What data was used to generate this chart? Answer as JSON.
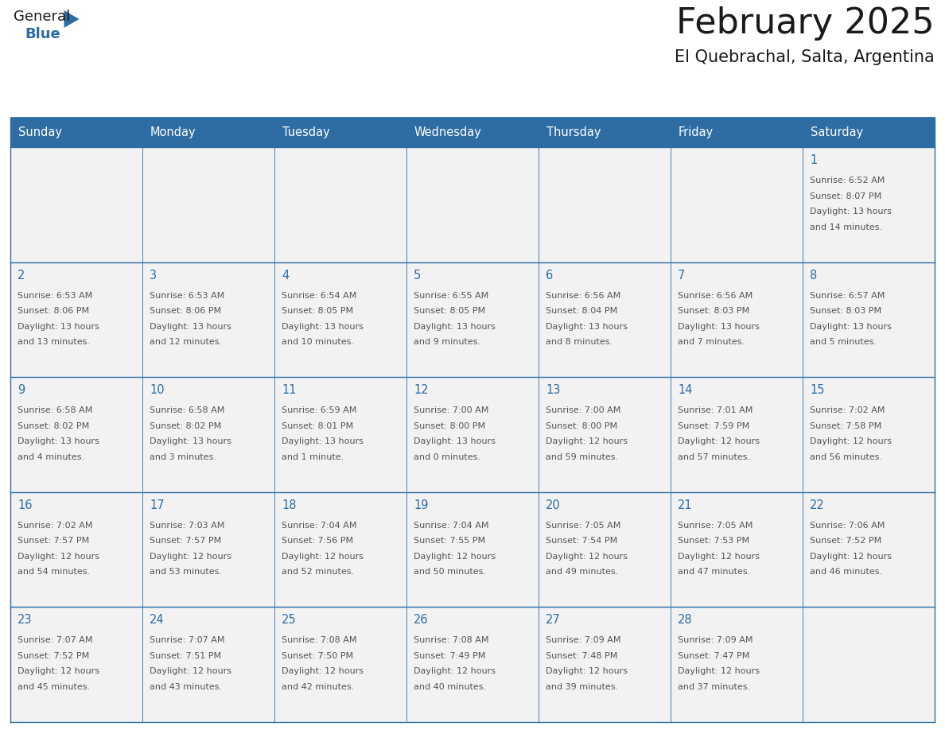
{
  "title": "February 2025",
  "subtitle": "El Quebrachal, Salta, Argentina",
  "header_bg": "#2E6DA4",
  "header_text": "#FFFFFF",
  "cell_bg": "#F2F2F2",
  "day_number_color": "#2E6DA4",
  "info_text_color": "#555555",
  "days_of_week": [
    "Sunday",
    "Monday",
    "Tuesday",
    "Wednesday",
    "Thursday",
    "Friday",
    "Saturday"
  ],
  "calendar_data": [
    [
      null,
      null,
      null,
      null,
      null,
      null,
      {
        "day": "1",
        "sunrise": "6:52 AM",
        "sunset": "8:07 PM",
        "daylight1": "13 hours",
        "daylight2": "and 14 minutes."
      }
    ],
    [
      {
        "day": "2",
        "sunrise": "6:53 AM",
        "sunset": "8:06 PM",
        "daylight1": "13 hours",
        "daylight2": "and 13 minutes."
      },
      {
        "day": "3",
        "sunrise": "6:53 AM",
        "sunset": "8:06 PM",
        "daylight1": "13 hours",
        "daylight2": "and 12 minutes."
      },
      {
        "day": "4",
        "sunrise": "6:54 AM",
        "sunset": "8:05 PM",
        "daylight1": "13 hours",
        "daylight2": "and 10 minutes."
      },
      {
        "day": "5",
        "sunrise": "6:55 AM",
        "sunset": "8:05 PM",
        "daylight1": "13 hours",
        "daylight2": "and 9 minutes."
      },
      {
        "day": "6",
        "sunrise": "6:56 AM",
        "sunset": "8:04 PM",
        "daylight1": "13 hours",
        "daylight2": "and 8 minutes."
      },
      {
        "day": "7",
        "sunrise": "6:56 AM",
        "sunset": "8:03 PM",
        "daylight1": "13 hours",
        "daylight2": "and 7 minutes."
      },
      {
        "day": "8",
        "sunrise": "6:57 AM",
        "sunset": "8:03 PM",
        "daylight1": "13 hours",
        "daylight2": "and 5 minutes."
      }
    ],
    [
      {
        "day": "9",
        "sunrise": "6:58 AM",
        "sunset": "8:02 PM",
        "daylight1": "13 hours",
        "daylight2": "and 4 minutes."
      },
      {
        "day": "10",
        "sunrise": "6:58 AM",
        "sunset": "8:02 PM",
        "daylight1": "13 hours",
        "daylight2": "and 3 minutes."
      },
      {
        "day": "11",
        "sunrise": "6:59 AM",
        "sunset": "8:01 PM",
        "daylight1": "13 hours",
        "daylight2": "and 1 minute."
      },
      {
        "day": "12",
        "sunrise": "7:00 AM",
        "sunset": "8:00 PM",
        "daylight1": "13 hours",
        "daylight2": "and 0 minutes."
      },
      {
        "day": "13",
        "sunrise": "7:00 AM",
        "sunset": "8:00 PM",
        "daylight1": "12 hours",
        "daylight2": "and 59 minutes."
      },
      {
        "day": "14",
        "sunrise": "7:01 AM",
        "sunset": "7:59 PM",
        "daylight1": "12 hours",
        "daylight2": "and 57 minutes."
      },
      {
        "day": "15",
        "sunrise": "7:02 AM",
        "sunset": "7:58 PM",
        "daylight1": "12 hours",
        "daylight2": "and 56 minutes."
      }
    ],
    [
      {
        "day": "16",
        "sunrise": "7:02 AM",
        "sunset": "7:57 PM",
        "daylight1": "12 hours",
        "daylight2": "and 54 minutes."
      },
      {
        "day": "17",
        "sunrise": "7:03 AM",
        "sunset": "7:57 PM",
        "daylight1": "12 hours",
        "daylight2": "and 53 minutes."
      },
      {
        "day": "18",
        "sunrise": "7:04 AM",
        "sunset": "7:56 PM",
        "daylight1": "12 hours",
        "daylight2": "and 52 minutes."
      },
      {
        "day": "19",
        "sunrise": "7:04 AM",
        "sunset": "7:55 PM",
        "daylight1": "12 hours",
        "daylight2": "and 50 minutes."
      },
      {
        "day": "20",
        "sunrise": "7:05 AM",
        "sunset": "7:54 PM",
        "daylight1": "12 hours",
        "daylight2": "and 49 minutes."
      },
      {
        "day": "21",
        "sunrise": "7:05 AM",
        "sunset": "7:53 PM",
        "daylight1": "12 hours",
        "daylight2": "and 47 minutes."
      },
      {
        "day": "22",
        "sunrise": "7:06 AM",
        "sunset": "7:52 PM",
        "daylight1": "12 hours",
        "daylight2": "and 46 minutes."
      }
    ],
    [
      {
        "day": "23",
        "sunrise": "7:07 AM",
        "sunset": "7:52 PM",
        "daylight1": "12 hours",
        "daylight2": "and 45 minutes."
      },
      {
        "day": "24",
        "sunrise": "7:07 AM",
        "sunset": "7:51 PM",
        "daylight1": "12 hours",
        "daylight2": "and 43 minutes."
      },
      {
        "day": "25",
        "sunrise": "7:08 AM",
        "sunset": "7:50 PM",
        "daylight1": "12 hours",
        "daylight2": "and 42 minutes."
      },
      {
        "day": "26",
        "sunrise": "7:08 AM",
        "sunset": "7:49 PM",
        "daylight1": "12 hours",
        "daylight2": "and 40 minutes."
      },
      {
        "day": "27",
        "sunrise": "7:09 AM",
        "sunset": "7:48 PM",
        "daylight1": "12 hours",
        "daylight2": "and 39 minutes."
      },
      {
        "day": "28",
        "sunrise": "7:09 AM",
        "sunset": "7:47 PM",
        "daylight1": "12 hours",
        "daylight2": "and 37 minutes."
      },
      null
    ]
  ],
  "logo_general_color": "#1a1a1a",
  "logo_blue_color": "#2E6DA4",
  "logo_triangle_color": "#2E6DA4",
  "fig_width": 11.88,
  "fig_height": 9.18,
  "dpi": 100
}
